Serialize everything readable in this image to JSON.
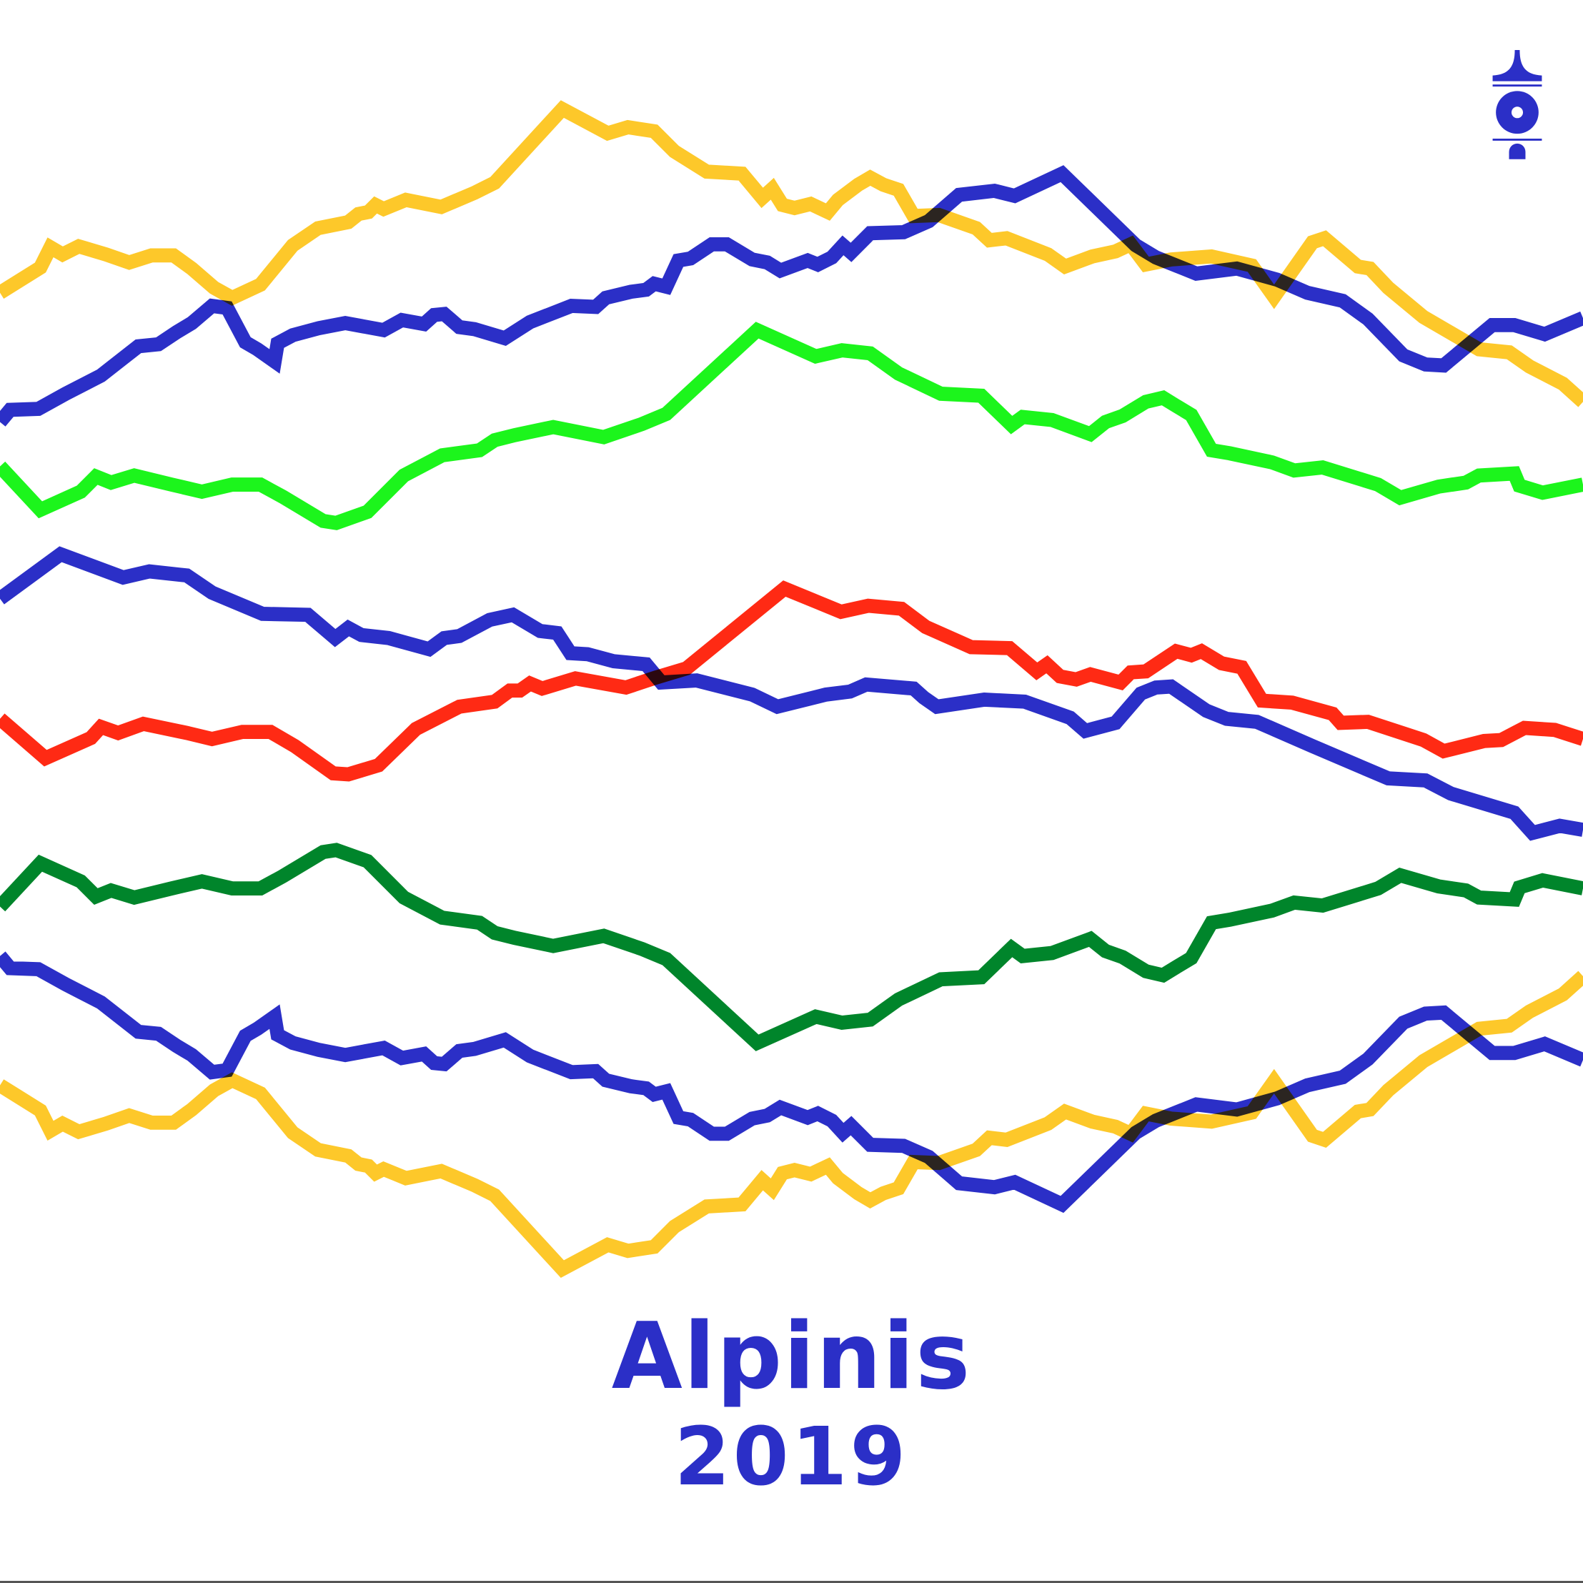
{
  "poster": {
    "title": "Alpinis",
    "year": "2019",
    "logo_icon": "tower-ring-emblem-icon"
  },
  "colors": {
    "background": "#ffffff",
    "brand_blue": "#2b2fc7",
    "yellow": "#fdc82a",
    "light_green": "#1cf51c",
    "dark_green": "#00852b",
    "red": "#ff2a14",
    "blue": "#2b2fc7"
  }
}
